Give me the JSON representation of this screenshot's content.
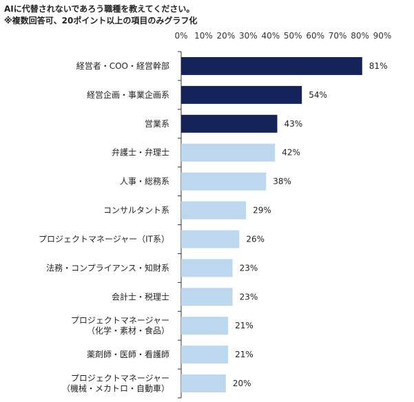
{
  "header": {
    "title": "AIに代替されないであろう職種を教えてください。",
    "subtitle": "※複数回答可、20ポイント以上の項目のみグラフ化"
  },
  "colors": {
    "highlight": "#14245a",
    "normal": "#bdd7ee",
    "axis": "#333333"
  },
  "chart_data": {
    "type": "bar",
    "orientation": "horizontal",
    "xlim": [
      0,
      90
    ],
    "ticks": [
      "0%",
      "10%",
      "20%",
      "30%",
      "40%",
      "50%",
      "60%",
      "70%",
      "80%",
      "90%"
    ],
    "grid": false,
    "categories": [
      [
        "経営者・COO・経営幹部"
      ],
      [
        "経営企画・事業企画系"
      ],
      [
        "営業系"
      ],
      [
        "弁護士・弁理士"
      ],
      [
        "人事・総務系"
      ],
      [
        "コンサルタント系"
      ],
      [
        "プロジェクトマネージャー（IT系）"
      ],
      [
        "法務・コンプライアンス・知財系"
      ],
      [
        "会計士・税理士"
      ],
      [
        "プロジェクトマネージャー",
        "（化学・素材・食品）"
      ],
      [
        "薬剤師・医師・看護師"
      ],
      [
        "プロジェクトマネージャー",
        "（機械・メカトロ・自動車）"
      ]
    ],
    "values": [
      81,
      54,
      43,
      42,
      38,
      29,
      26,
      23,
      23,
      21,
      21,
      20
    ],
    "value_labels": [
      "81%",
      "54%",
      "43%",
      "42%",
      "38%",
      "29%",
      "26%",
      "23%",
      "23%",
      "21%",
      "21%",
      "20%"
    ],
    "highlighted": [
      true,
      true,
      true,
      false,
      false,
      false,
      false,
      false,
      false,
      false,
      false,
      false
    ]
  }
}
